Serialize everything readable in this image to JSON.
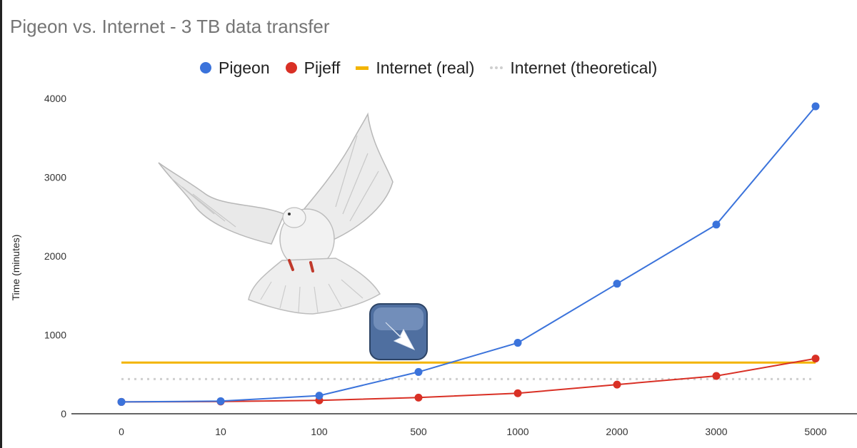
{
  "chart_data": {
    "type": "line",
    "title": "Pigeon vs. Internet - 3 TB data transfer",
    "xlabel": "",
    "ylabel": "Time (minutes)",
    "categories": [
      "0",
      "10",
      "100",
      "500",
      "1000",
      "2000",
      "3000",
      "5000"
    ],
    "ylim": [
      0,
      4000
    ],
    "yticks": [
      "0",
      "1000",
      "2000",
      "3000",
      "4000"
    ],
    "grid": false,
    "legend": "top-center",
    "series": [
      {
        "name": "Pigeon",
        "color": "#3b73db",
        "style": "line-markers",
        "values": [
          150,
          160,
          230,
          530,
          900,
          1650,
          2400,
          3900
        ]
      },
      {
        "name": "Pijeff",
        "color": "#d93025",
        "style": "line-markers",
        "values": [
          150,
          155,
          170,
          205,
          260,
          370,
          480,
          700
        ]
      },
      {
        "name": "Internet (real)",
        "color": "#f3b400",
        "style": "line",
        "values": [
          650,
          650,
          650,
          650,
          650,
          650,
          650,
          650
        ]
      },
      {
        "name": "Internet (theoretical)",
        "color": "#cfcfcf",
        "style": "dotted",
        "values": [
          440,
          440,
          440,
          440,
          440,
          440,
          440,
          440
        ]
      }
    ],
    "annotations": [
      "pigeon-image",
      "arrow-icon"
    ]
  }
}
